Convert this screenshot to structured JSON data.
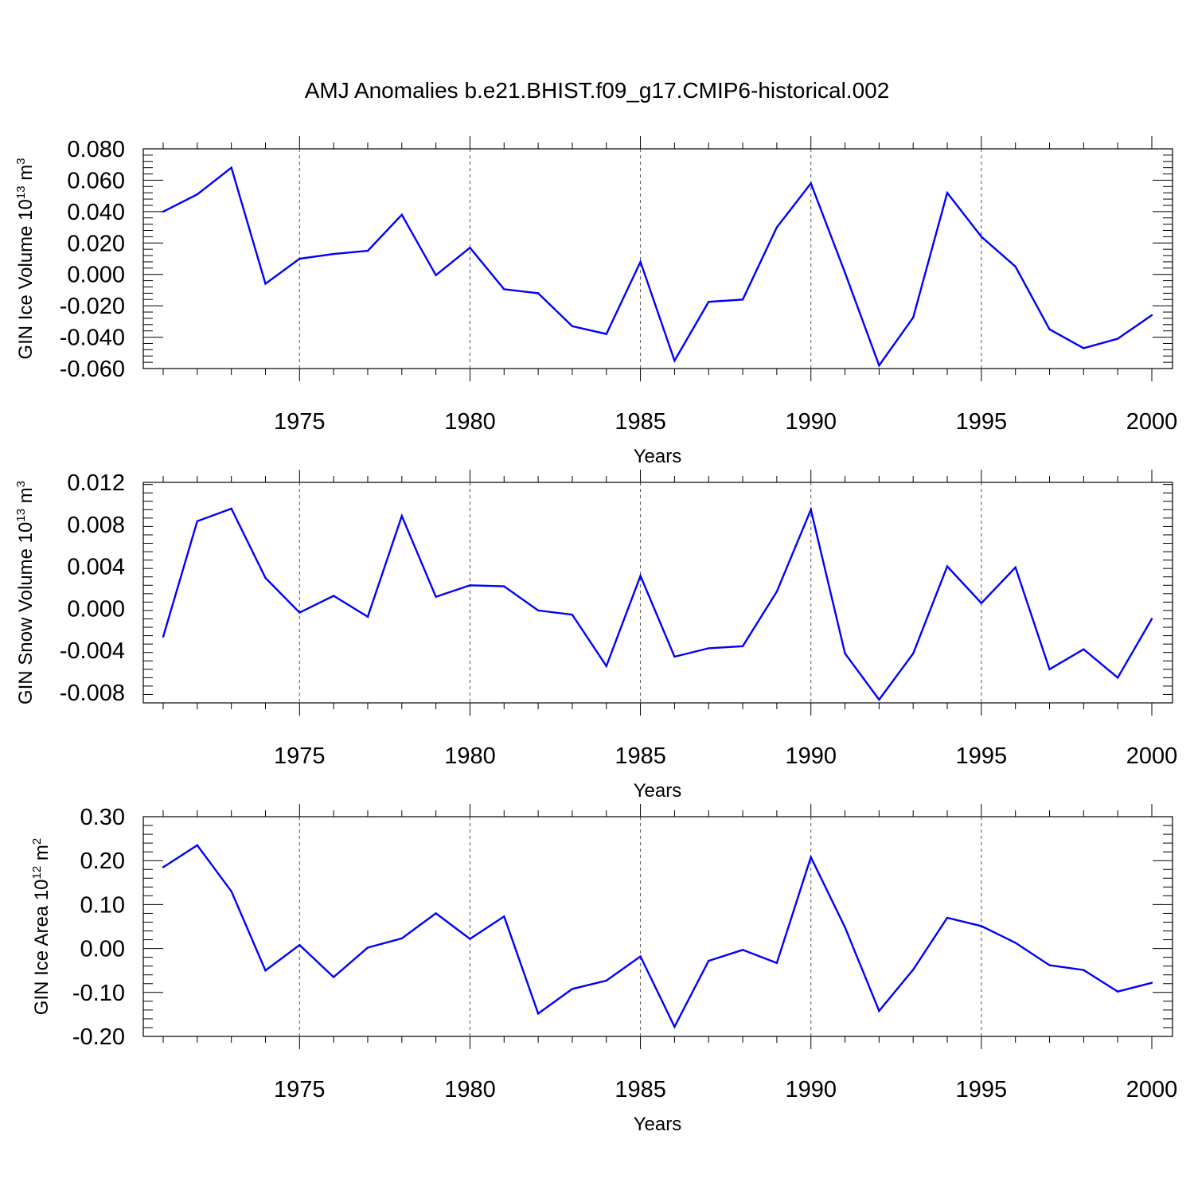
{
  "title": "AMJ Anomalies b.e21.BHIST.f09_g17.CMIP6-historical.002",
  "line_color": "#0000ff",
  "chart_data": [
    {
      "type": "line",
      "ylabel": "GIN Ice Volume 10",
      "ylabel_exp": "13",
      "ylabel_unit": "m",
      "ylabel_unit_exp": "3",
      "xlabel": "Years",
      "xlim": [
        1971,
        2000
      ],
      "ylim": [
        -0.06,
        0.08
      ],
      "yticks": [
        -0.06,
        -0.04,
        -0.02,
        0.0,
        0.02,
        0.04,
        0.06,
        0.08
      ],
      "yticklabels": [
        "-0.060",
        "-0.040",
        "-0.020",
        "0.000",
        "0.020",
        "0.040",
        "0.060",
        "0.080"
      ],
      "xticks": [
        1975,
        1980,
        1985,
        1990,
        1995,
        2000
      ],
      "xticklabels": [
        "1975",
        "1980",
        "1985",
        "1990",
        "1995",
        "2000"
      ],
      "x": [
        1971,
        1972,
        1973,
        1974,
        1975,
        1976,
        1977,
        1978,
        1979,
        1980,
        1981,
        1982,
        1983,
        1984,
        1985,
        1986,
        1987,
        1988,
        1989,
        1990,
        1991,
        1992,
        1993,
        1994,
        1995,
        1996,
        1997,
        1998,
        1999,
        2000
      ],
      "y": [
        0.04,
        0.051,
        0.068,
        -0.006,
        0.01,
        0.013,
        0.015,
        0.038,
        -0.0005,
        0.017,
        -0.0095,
        -0.012,
        -0.033,
        -0.038,
        0.008,
        -0.055,
        -0.0175,
        -0.016,
        0.03,
        0.058,
        0.001,
        -0.058,
        -0.0275,
        0.052,
        0.024,
        0.005,
        -0.035,
        -0.047,
        -0.041,
        -0.026
      ],
      "grid": "vertical dashed at major x ticks"
    },
    {
      "type": "line",
      "ylabel": "GIN Snow Volume 10",
      "ylabel_exp": "13",
      "ylabel_unit": "m",
      "ylabel_unit_exp": "3",
      "xlabel": "Years",
      "xlim": [
        1971,
        2000
      ],
      "ylim": [
        -0.009,
        0.012
      ],
      "yticks": [
        -0.008,
        -0.004,
        0.0,
        0.004,
        0.008,
        0.012
      ],
      "yticklabels": [
        "-0.008",
        "-0.004",
        "0.000",
        "0.004",
        "0.008",
        "0.012"
      ],
      "xticks": [
        1975,
        1980,
        1985,
        1990,
        1995,
        2000
      ],
      "xticklabels": [
        "1975",
        "1980",
        "1985",
        "1990",
        "1995",
        "2000"
      ],
      "x": [
        1971,
        1972,
        1973,
        1974,
        1975,
        1976,
        1977,
        1978,
        1979,
        1980,
        1981,
        1982,
        1983,
        1984,
        1985,
        1986,
        1987,
        1988,
        1989,
        1990,
        1991,
        1992,
        1993,
        1994,
        1995,
        1996,
        1997,
        1998,
        1999,
        2000
      ],
      "y": [
        -0.0027,
        0.0083,
        0.0095,
        0.0029,
        -0.0004,
        0.0012,
        -0.0008,
        0.0088,
        0.0011,
        0.0022,
        0.0021,
        -0.0002,
        -0.0006,
        -0.0055,
        0.0031,
        -0.0046,
        -0.0038,
        -0.0036,
        0.0016,
        0.0094,
        -0.0043,
        -0.0087,
        -0.0043,
        0.004,
        0.0005,
        0.0039,
        -0.0058,
        -0.0039,
        -0.0066,
        -0.001
      ],
      "grid": "vertical dashed at major x ticks"
    },
    {
      "type": "line",
      "ylabel": "GIN Ice Area 10",
      "ylabel_exp": "12",
      "ylabel_unit": "m",
      "ylabel_unit_exp": "2",
      "xlabel": "Years",
      "xlim": [
        1971,
        2000
      ],
      "ylim": [
        -0.2,
        0.3
      ],
      "yticks": [
        -0.2,
        -0.1,
        0.0,
        0.1,
        0.2,
        0.3
      ],
      "yticklabels": [
        "-0.20",
        "-0.10",
        "0.00",
        "0.10",
        "0.20",
        "0.30"
      ],
      "xticks": [
        1975,
        1980,
        1985,
        1990,
        1995,
        2000
      ],
      "xticklabels": [
        "1975",
        "1980",
        "1985",
        "1990",
        "1995",
        "2000"
      ],
      "x": [
        1971,
        1972,
        1973,
        1974,
        1975,
        1976,
        1977,
        1978,
        1979,
        1980,
        1981,
        1982,
        1983,
        1984,
        1985,
        1986,
        1987,
        1988,
        1989,
        1990,
        1991,
        1992,
        1993,
        1994,
        1995,
        1996,
        1997,
        1998,
        1999,
        2000
      ],
      "y": [
        0.185,
        0.235,
        0.13,
        -0.05,
        0.008,
        -0.065,
        0.002,
        0.023,
        0.08,
        0.022,
        0.073,
        -0.148,
        -0.092,
        -0.073,
        -0.018,
        -0.178,
        -0.028,
        -0.003,
        -0.033,
        0.208,
        0.048,
        -0.142,
        -0.048,
        0.07,
        0.051,
        0.013,
        -0.038,
        -0.049,
        -0.098,
        -0.078
      ],
      "grid": "vertical dashed at major x ticks"
    }
  ]
}
